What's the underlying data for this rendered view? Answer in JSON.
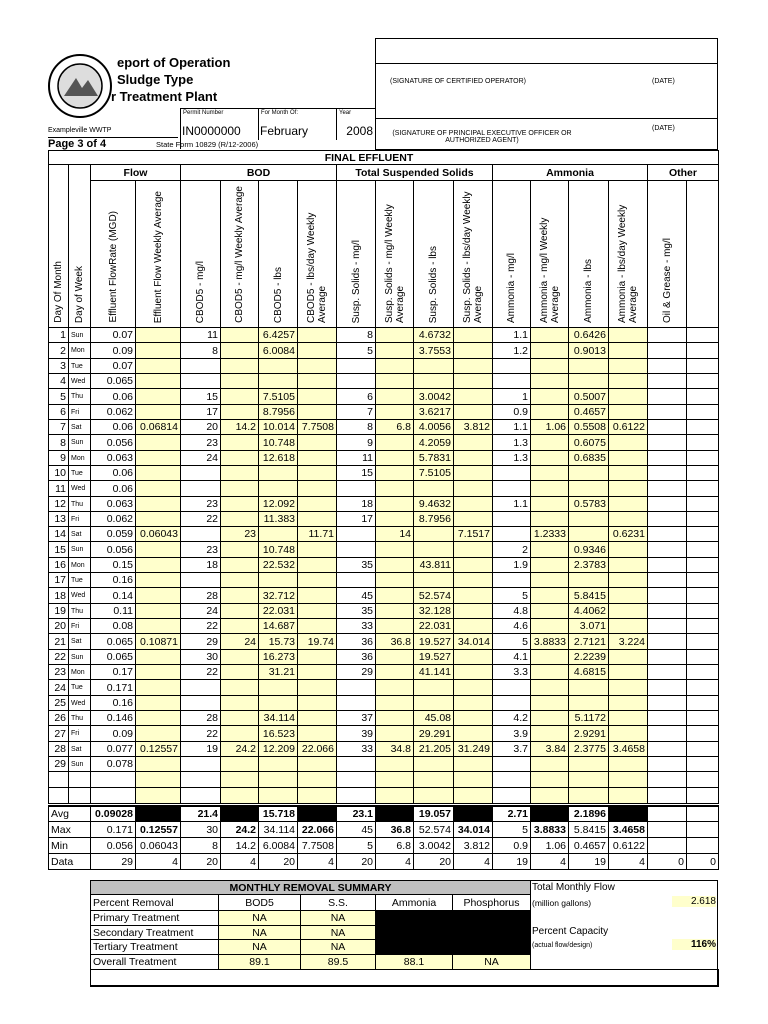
{
  "header": {
    "title_lines": [
      "eport of Operation",
      "Sludge Type",
      "r Treatment Plant"
    ],
    "facility": "Exampleville WWTP",
    "permit_label": "Permit Number",
    "permit": "IN0000000",
    "month_label": "For Month Of:",
    "month": "February",
    "year_label": "Year",
    "year": "2008",
    "page": "Page 3 of 4",
    "form": "State Form 10829 (R/12-2006)"
  },
  "signatures": {
    "operator": "(SIGNATURE OF CERTIFIED OPERATOR)",
    "operator_date": "(DATE)",
    "executive": "(SIGNATURE OF PRINCIPAL EXECUTIVE OFFICER OR AUTHORIZED AGENT)",
    "executive_date": "(DATE)"
  },
  "table": {
    "section": "FINAL EFFLUENT",
    "groups": [
      "Flow",
      "BOD",
      "Total Suspended Solids",
      "Ammonia",
      "Other"
    ],
    "columns": [
      "Day Of Month",
      "Day of Week",
      "Effluent FlowRate (MGD)",
      "Effluent Flow Weekly Average",
      "CBOD5 - mg/l",
      "CBOD5 - mg/l Weekly Average",
      "CBOD5 - lbs",
      "CBOD5 - lbs/day Weekly Average",
      "Susp. Solids - mg/l",
      "Susp. Solids - mg/l Weekly Average",
      "Susp. Solids - lbs",
      "Susp. Solids - lbs/day Weekly Average",
      "Ammonia - mg/l",
      "Ammonia - mg/l Weekly Average",
      "Ammonia - lbs",
      "Ammonia - lbs/day Weekly Average",
      "Oil & Grease - mg/l"
    ],
    "rows": [
      {
        "day": "1",
        "dow": "Sun",
        "values": [
          "0.07",
          null,
          "11",
          null,
          "6.4257",
          null,
          "8",
          null,
          "4.6732",
          null,
          "1.1",
          null,
          "0.6426",
          null,
          null,
          null
        ]
      },
      {
        "day": "2",
        "dow": "Mon",
        "values": [
          "0.09",
          null,
          "8",
          null,
          "6.0084",
          null,
          "5",
          null,
          "3.7553",
          null,
          "1.2",
          null,
          "0.9013",
          null,
          null,
          null
        ]
      },
      {
        "day": "3",
        "dow": "Tue",
        "values": [
          "0.07",
          null,
          null,
          null,
          null,
          null,
          null,
          null,
          null,
          null,
          null,
          null,
          null,
          null,
          null,
          null
        ]
      },
      {
        "day": "4",
        "dow": "Wed",
        "values": [
          "0.065",
          null,
          null,
          null,
          null,
          null,
          null,
          null,
          null,
          null,
          null,
          null,
          null,
          null,
          null,
          null
        ]
      },
      {
        "day": "5",
        "dow": "Thu",
        "values": [
          "0.06",
          null,
          "15",
          null,
          "7.5105",
          null,
          "6",
          null,
          "3.0042",
          null,
          "1",
          null,
          "0.5007",
          null,
          null,
          null
        ]
      },
      {
        "day": "6",
        "dow": "Fri",
        "values": [
          "0.062",
          null,
          "17",
          null,
          "8.7956",
          null,
          "7",
          null,
          "3.6217",
          null,
          "0.9",
          null,
          "0.4657",
          null,
          null,
          null
        ]
      },
      {
        "day": "7",
        "dow": "Sat",
        "values": [
          "0.06",
          "0.06814",
          "20",
          "14.2",
          "10.014",
          "7.7508",
          "8",
          "6.8",
          "4.0056",
          "3.812",
          "1.1",
          "1.06",
          "0.5508",
          "0.6122",
          null,
          null
        ]
      },
      {
        "day": "8",
        "dow": "Sun",
        "values": [
          "0.056",
          null,
          "23",
          null,
          "10.748",
          null,
          "9",
          null,
          "4.2059",
          null,
          "1.3",
          null,
          "0.6075",
          null,
          null,
          null
        ]
      },
      {
        "day": "9",
        "dow": "Mon",
        "values": [
          "0.063",
          null,
          "24",
          null,
          "12.618",
          null,
          "11",
          null,
          "5.7831",
          null,
          "1.3",
          null,
          "0.6835",
          null,
          null,
          null
        ]
      },
      {
        "day": "10",
        "dow": "Tue",
        "values": [
          "0.06",
          null,
          null,
          null,
          null,
          null,
          "15",
          null,
          "7.5105",
          null,
          null,
          null,
          null,
          null,
          null,
          null
        ]
      },
      {
        "day": "11",
        "dow": "Wed",
        "values": [
          "0.06",
          null,
          null,
          null,
          null,
          null,
          null,
          null,
          null,
          null,
          null,
          null,
          null,
          null,
          null,
          null
        ]
      },
      {
        "day": "12",
        "dow": "Thu",
        "values": [
          "0.063",
          null,
          "23",
          null,
          "12.092",
          null,
          "18",
          null,
          "9.4632",
          null,
          "1.1",
          null,
          "0.5783",
          null,
          null,
          null
        ]
      },
      {
        "day": "13",
        "dow": "Fri",
        "values": [
          "0.062",
          null,
          "22",
          null,
          "11.383",
          null,
          "17",
          null,
          "8.7956",
          null,
          null,
          null,
          null,
          null,
          null,
          null
        ]
      },
      {
        "day": "14",
        "dow": "Sat",
        "values": [
          "0.059",
          "0.06043",
          null,
          "23",
          null,
          "11.71",
          null,
          "14",
          null,
          "7.1517",
          null,
          "1.2333",
          null,
          "0.6231",
          null,
          null
        ]
      },
      {
        "day": "15",
        "dow": "Sun",
        "values": [
          "0.056",
          null,
          "23",
          null,
          "10.748",
          null,
          null,
          null,
          null,
          null,
          "2",
          null,
          "0.9346",
          null,
          null,
          null
        ]
      },
      {
        "day": "16",
        "dow": "Mon",
        "values": [
          "0.15",
          null,
          "18",
          null,
          "22.532",
          null,
          "35",
          null,
          "43.811",
          null,
          "1.9",
          null,
          "2.3783",
          null,
          null,
          null
        ]
      },
      {
        "day": "17",
        "dow": "Tue",
        "values": [
          "0.16",
          null,
          null,
          null,
          null,
          null,
          null,
          null,
          null,
          null,
          null,
          null,
          null,
          null,
          null,
          null
        ]
      },
      {
        "day": "18",
        "dow": "Wed",
        "values": [
          "0.14",
          null,
          "28",
          null,
          "32.712",
          null,
          "45",
          null,
          "52.574",
          null,
          "5",
          null,
          "5.8415",
          null,
          null,
          null
        ]
      },
      {
        "day": "19",
        "dow": "Thu",
        "values": [
          "0.11",
          null,
          "24",
          null,
          "22.031",
          null,
          "35",
          null,
          "32.128",
          null,
          "4.8",
          null,
          "4.4062",
          null,
          null,
          null
        ]
      },
      {
        "day": "20",
        "dow": "Fri",
        "values": [
          "0.08",
          null,
          "22",
          null,
          "14.687",
          null,
          "33",
          null,
          "22.031",
          null,
          "4.6",
          null,
          "3.071",
          null,
          null,
          null
        ]
      },
      {
        "day": "21",
        "dow": "Sat",
        "values": [
          "0.065",
          "0.10871",
          "29",
          "24",
          "15.73",
          "19.74",
          "36",
          "36.8",
          "19.527",
          "34.014",
          "5",
          "3.8833",
          "2.7121",
          "3.224",
          null,
          null
        ]
      },
      {
        "day": "22",
        "dow": "Sun",
        "values": [
          "0.065",
          null,
          "30",
          null,
          "16.273",
          null,
          "36",
          null,
          "19.527",
          null,
          "4.1",
          null,
          "2.2239",
          null,
          null,
          null
        ]
      },
      {
        "day": "23",
        "dow": "Mon",
        "values": [
          "0.17",
          null,
          "22",
          null,
          "31.21",
          null,
          "29",
          null,
          "41.141",
          null,
          "3.3",
          null,
          "4.6815",
          null,
          null,
          null
        ]
      },
      {
        "day": "24",
        "dow": "Tue",
        "values": [
          "0.171",
          null,
          null,
          null,
          null,
          null,
          null,
          null,
          null,
          null,
          null,
          null,
          null,
          null,
          null,
          null
        ]
      },
      {
        "day": "25",
        "dow": "Wed",
        "values": [
          "0.16",
          null,
          null,
          null,
          null,
          null,
          null,
          null,
          null,
          null,
          null,
          null,
          null,
          null,
          null,
          null
        ]
      },
      {
        "day": "26",
        "dow": "Thu",
        "values": [
          "0.146",
          null,
          "28",
          null,
          "34.114",
          null,
          "37",
          null,
          "45.08",
          null,
          "4.2",
          null,
          "5.1172",
          null,
          null,
          null
        ]
      },
      {
        "day": "27",
        "dow": "Fri",
        "values": [
          "0.09",
          null,
          "22",
          null,
          "16.523",
          null,
          "39",
          null,
          "29.291",
          null,
          "3.9",
          null,
          "2.9291",
          null,
          null,
          null
        ]
      },
      {
        "day": "28",
        "dow": "Sat",
        "values": [
          "0.077",
          "0.12557",
          "19",
          "24.2",
          "12.209",
          "22.066",
          "33",
          "34.8",
          "21.205",
          "31.249",
          "3.7",
          "3.84",
          "2.3775",
          "3.4658",
          null,
          null
        ]
      },
      {
        "day": "29",
        "dow": "Sun",
        "values": [
          "0.078",
          null,
          null,
          null,
          null,
          null,
          null,
          null,
          null,
          null,
          null,
          null,
          null,
          null,
          null,
          null
        ]
      }
    ],
    "stats": [
      {
        "label": "Avg",
        "values": [
          "0.09028",
          null,
          "21.4",
          null,
          "15.718",
          null,
          "23.1",
          null,
          "19.057",
          null,
          "2.71",
          null,
          "2.1896",
          null,
          null,
          null
        ]
      },
      {
        "label": "Max",
        "values": [
          "0.171",
          "0.12557",
          "30",
          "24.2",
          "34.114",
          "22.066",
          "45",
          "36.8",
          "52.574",
          "34.014",
          "5",
          "3.8833",
          "5.8415",
          "3.4658",
          null,
          null
        ]
      },
      {
        "label": "Min",
        "values": [
          "0.056",
          "0.06043",
          "8",
          "14.2",
          "6.0084",
          "7.7508",
          "5",
          "6.8",
          "3.0042",
          "3.812",
          "0.9",
          "1.06",
          "0.4657",
          "0.6122",
          null,
          null
        ]
      },
      {
        "label": "Data",
        "values": [
          "29",
          "4",
          "20",
          "4",
          "20",
          "4",
          "20",
          "4",
          "20",
          "4",
          "19",
          "4",
          "19",
          "4",
          "0",
          "0"
        ]
      }
    ]
  },
  "removal": {
    "title": "MONTHLY REMOVAL SUMMARY",
    "headers": [
      "Percent Removal",
      "BOD5",
      "S.S.",
      "Ammonia",
      "Phosphorus"
    ],
    "rows": [
      {
        "label": "Primary Treatment",
        "values": [
          "NA",
          "NA",
          null,
          null
        ]
      },
      {
        "label": "Secondary Treatment",
        "values": [
          "NA",
          "NA",
          null,
          null
        ]
      },
      {
        "label": "Tertiary Treatment",
        "values": [
          "NA",
          "NA",
          null,
          null
        ]
      },
      {
        "label": "Overall Treatment",
        "values": [
          "89.1",
          "89.5",
          "88.1",
          "NA"
        ]
      }
    ]
  },
  "flow_summary": {
    "total_label": "Total Monthly Flow",
    "total_unit": "(million gallons)",
    "total": "2.618",
    "capacity_label": "Percent Capacity",
    "capacity_unit": "(actual flow/design)",
    "capacity": "116%"
  }
}
